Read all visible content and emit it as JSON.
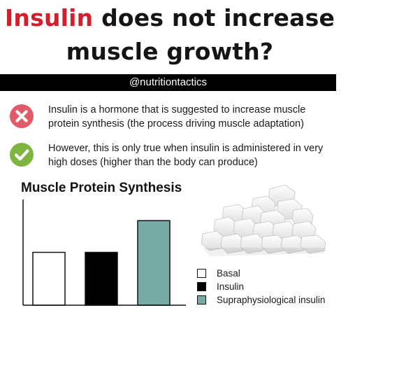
{
  "title": {
    "highlight": "Insulin",
    "line1_rest": " does not increase",
    "line2": "muscle growth?"
  },
  "handle": "@nutritiontactics",
  "points": [
    {
      "icon": "cross-icon",
      "icon_color": "#e05a68",
      "text": "Insulin is a hormone that is suggested to increase muscle protein synthesis (the process driving muscle adaptation)"
    },
    {
      "icon": "check-icon",
      "icon_color": "#7db53e",
      "text": "However, this is only true when insulin is administered in very high doses (higher than the body can produce)"
    }
  ],
  "chart_data": {
    "type": "bar",
    "title": "Muscle Protein Synthesis",
    "categories": [
      "Basal",
      "Insulin",
      "Supraphysiological insulin"
    ],
    "values": [
      45,
      45,
      72
    ],
    "colors": [
      "#ffffff",
      "#000000",
      "#78aaa5"
    ],
    "xlabel": "",
    "ylabel": "",
    "ylim": [
      0,
      90
    ],
    "grid": false,
    "legend": "right",
    "legend_entries": [
      "Basal",
      "Insulin",
      "Supraphysiological insulin"
    ]
  },
  "colors": {
    "highlight_red": "#d11f2c",
    "bar_teal": "#78aaa5"
  },
  "image": {
    "icon": "sugar-cubes-icon"
  }
}
